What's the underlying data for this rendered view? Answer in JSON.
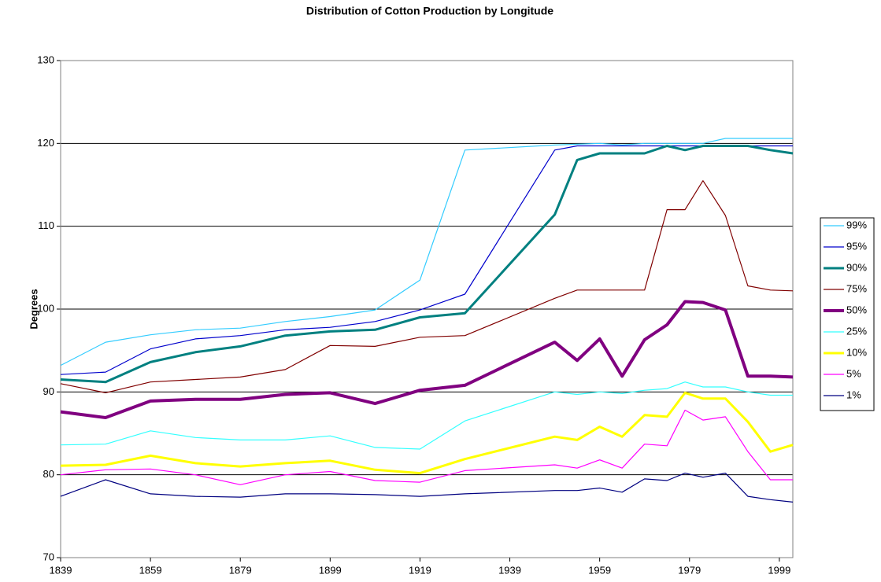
{
  "chart_data": {
    "type": "line",
    "title": "Distribution of Cotton Production by Longitude",
    "y_label": "Degrees",
    "x": [
      1839,
      1849,
      1859,
      1869,
      1879,
      1889,
      1899,
      1909,
      1919,
      1929,
      1949,
      1954,
      1959,
      1964,
      1969,
      1974,
      1978,
      1982,
      1987,
      1992,
      1997,
      2002
    ],
    "xlim": [
      1839,
      2002
    ],
    "xticks": [
      1839,
      1859,
      1879,
      1899,
      1919,
      1939,
      1959,
      1979,
      1999
    ],
    "ylim": [
      70,
      130
    ],
    "yticks": [
      70,
      80,
      90,
      100,
      110,
      120,
      130
    ],
    "grid": true,
    "legend": "right",
    "series": [
      {
        "name": "99%",
        "color": "#33ccff",
        "line_width": 1.2,
        "values": [
          93.2,
          96.0,
          96.9,
          97.5,
          97.7,
          98.5,
          99.1,
          99.9,
          103.5,
          119.2,
          119.8,
          119.9,
          120.0,
          119.8,
          120.0,
          120.0,
          120.0,
          120.0,
          120.6,
          120.6,
          120.6,
          120.6
        ]
      },
      {
        "name": "95%",
        "color": "#0000cc",
        "line_width": 1.2,
        "values": [
          92.1,
          92.4,
          95.2,
          96.4,
          96.8,
          97.5,
          97.8,
          98.5,
          99.9,
          101.8,
          119.2,
          119.7,
          119.7,
          119.7,
          119.7,
          119.7,
          119.7,
          119.7,
          119.7,
          119.7,
          119.7,
          119.7
        ]
      },
      {
        "name": "90%",
        "color": "#008080",
        "line_width": 3,
        "values": [
          91.5,
          91.2,
          93.6,
          94.8,
          95.5,
          96.8,
          97.3,
          97.5,
          99.0,
          99.5,
          111.4,
          118.0,
          118.8,
          118.8,
          118.8,
          119.7,
          119.2,
          119.7,
          119.7,
          119.7,
          119.2,
          118.8
        ]
      },
      {
        "name": "75%",
        "color": "#800000",
        "line_width": 1.2,
        "values": [
          91.0,
          89.9,
          91.2,
          91.5,
          91.8,
          92.7,
          95.6,
          95.5,
          96.6,
          96.8,
          101.3,
          102.3,
          102.3,
          102.3,
          102.3,
          112.0,
          112.0,
          115.5,
          111.3,
          102.8,
          102.3,
          102.2
        ]
      },
      {
        "name": "50%",
        "color": "#800080",
        "line_width": 4,
        "values": [
          87.6,
          86.9,
          88.9,
          89.1,
          89.1,
          89.7,
          89.9,
          88.6,
          90.2,
          90.8,
          96.0,
          93.8,
          96.4,
          91.9,
          96.3,
          98.1,
          100.9,
          100.8,
          99.9,
          91.9,
          91.9,
          91.8
        ]
      },
      {
        "name": "25%",
        "color": "#33ffff",
        "line_width": 1.2,
        "values": [
          83.6,
          83.7,
          85.3,
          84.5,
          84.2,
          84.2,
          84.7,
          83.3,
          83.1,
          86.5,
          90.0,
          89.7,
          90.0,
          89.8,
          90.2,
          90.4,
          91.2,
          90.6,
          90.6,
          90.0,
          89.6,
          89.6
        ]
      },
      {
        "name": "10%",
        "color": "#ffff00",
        "line_width": 3,
        "values": [
          81.1,
          81.2,
          82.3,
          81.4,
          81.0,
          81.4,
          81.7,
          80.6,
          80.2,
          81.9,
          84.6,
          84.2,
          85.8,
          84.6,
          87.2,
          87.0,
          89.9,
          89.2,
          89.2,
          86.4,
          82.8,
          83.6
        ]
      },
      {
        "name": "5%",
        "color": "#ff00ff",
        "line_width": 1.2,
        "values": [
          80.0,
          80.6,
          80.7,
          80.0,
          78.8,
          80.0,
          80.4,
          79.3,
          79.1,
          80.5,
          81.2,
          80.8,
          81.8,
          80.8,
          83.7,
          83.5,
          87.8,
          86.6,
          87.0,
          82.8,
          79.4,
          79.4
        ]
      },
      {
        "name": "1%",
        "color": "#000080",
        "line_width": 1.2,
        "values": [
          77.4,
          79.4,
          77.7,
          77.4,
          77.3,
          77.7,
          77.7,
          77.6,
          77.4,
          77.7,
          78.1,
          78.1,
          78.4,
          77.9,
          79.5,
          79.3,
          80.2,
          79.7,
          80.2,
          77.4,
          77.0,
          76.7
        ]
      }
    ]
  }
}
